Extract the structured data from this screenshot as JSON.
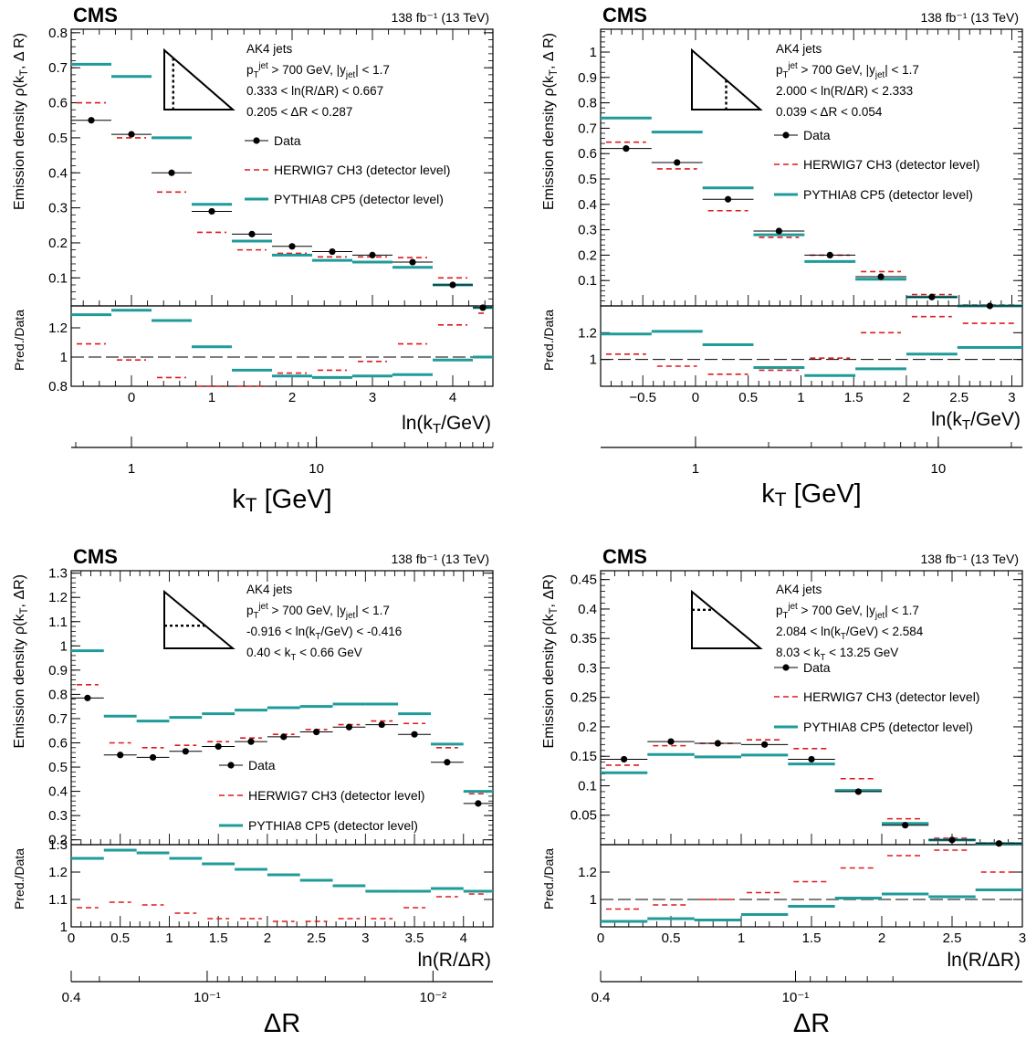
{
  "panels": [
    {
      "experiment": "CMS",
      "lumi": "138 fb⁻¹ (13 TeV)",
      "annotation": [
        "AK4 jets",
        "p_T^jet > 700 GeV, |y_jet| < 1.7",
        "0.333 < ln(R/ΔR) < 0.667",
        "0.205 < ΔR < 0.287"
      ],
      "legend": [
        "Data",
        "HERWIG7 CH3 (detector level)",
        "PYTHIA8 CP5 (detector level)"
      ],
      "ylabel": "Emission density ρ(k_T, Δ R)",
      "ratio_label": "Pred./Data",
      "xlabel": "ln(k_T/GeV)",
      "secondary_axis_label": "k_T [GeV]"
    },
    {
      "experiment": "CMS",
      "lumi": "138 fb⁻¹ (13 TeV)",
      "annotation": [
        "AK4 jets",
        "p_T^jet > 700 GeV, |y_jet| < 1.7",
        "2.000 < ln(R/ΔR) < 2.333",
        "0.039 < ΔR < 0.054"
      ],
      "legend": [
        "Data",
        "HERWIG7 CH3 (detector level)",
        "PYTHIA8 CP5 (detector level)"
      ],
      "ylabel": "Emission density ρ(k_T, Δ R)",
      "ratio_label": "Pred./Data",
      "xlabel": "ln(k_T/GeV)",
      "secondary_axis_label": "k_T [GeV]"
    },
    {
      "experiment": "CMS",
      "lumi": "138 fb⁻¹ (13 TeV)",
      "annotation": [
        "AK4 jets",
        "p_T^jet > 700 GeV, |y_jet| < 1.7",
        "-0.916 < ln(k_T/GeV) < -0.416",
        "0.40 < k_T < 0.66 GeV"
      ],
      "legend": [
        "Data",
        "HERWIG7 CH3 (detector level)",
        "PYTHIA8 CP5 (detector level)"
      ],
      "ylabel": "Emission density ρ(k_T, ΔR)",
      "ratio_label": "Pred./Data",
      "xlabel": "ln(R/ΔR)",
      "secondary_axis_label": "ΔR"
    },
    {
      "experiment": "CMS",
      "lumi": "138 fb⁻¹ (13 TeV)",
      "annotation": [
        "AK4 jets",
        "p_T^jet > 700 GeV, |y_jet| < 1.7",
        "2.084 < ln(k_T/GeV) < 2.584",
        "8.03 < k_T < 13.25 GeV"
      ],
      "legend": [
        "Data",
        "HERWIG7 CH3 (detector level)",
        "PYTHIA8 CP5 (detector level)"
      ],
      "ylabel": "Emission density ρ(k_T, ΔR)",
      "ratio_label": "Pred./Data",
      "xlabel": "ln(R/ΔR)",
      "secondary_axis_label": "ΔR"
    }
  ],
  "chart_data": [
    {
      "type": "line",
      "title": "",
      "xlabel": "ln(k_T/GeV)",
      "ylabel": "Emission density ρ(k_T, Δ R)",
      "xlim": [
        -0.75,
        4.5
      ],
      "ylim": [
        0.02,
        0.81
      ],
      "xticks": [
        0,
        1,
        2,
        3,
        4
      ],
      "yticks": [
        0.1,
        0.2,
        0.3,
        0.4,
        0.5,
        0.6,
        0.7,
        0.8
      ],
      "ratio_ylim": [
        0.8,
        1.35
      ],
      "ratio_yticks": [
        0.8,
        1,
        1.2
      ],
      "bin_edges": [
        -0.75,
        -0.25,
        0.25,
        0.75,
        1.25,
        1.75,
        2.25,
        2.75,
        3.25,
        3.75,
        4.25,
        4.5
      ],
      "series": [
        {
          "name": "Data",
          "values": [
            0.55,
            0.51,
            0.4,
            0.29,
            0.225,
            0.19,
            0.175,
            0.165,
            0.145,
            0.08,
            0.015
          ],
          "errors": [
            0.005,
            0.005,
            0.005,
            0.004,
            0.004,
            0.004,
            0.004,
            0.004,
            0.004,
            0.004,
            0.002
          ]
        },
        {
          "name": "HERWIG7 CH3 (detector level)",
          "values": [
            0.6,
            0.5,
            0.345,
            0.23,
            0.18,
            0.17,
            0.16,
            0.16,
            0.158,
            0.1,
            0.02
          ]
        },
        {
          "name": "PYTHIA8 CP5 (detector level)",
          "values": [
            0.71,
            0.675,
            0.5,
            0.31,
            0.205,
            0.165,
            0.15,
            0.145,
            0.13,
            0.08,
            0.015
          ]
        }
      ],
      "ratio_series": [
        {
          "name": "HERWIG7 CH3 (detector level)",
          "values": [
            1.09,
            0.98,
            0.86,
            0.8,
            0.8,
            0.89,
            0.91,
            0.97,
            1.09,
            1.22,
            1.3
          ]
        },
        {
          "name": "PYTHIA8 CP5 (detector level)",
          "values": [
            1.29,
            1.32,
            1.25,
            1.07,
            0.91,
            0.87,
            0.86,
            0.87,
            0.88,
            0.98,
            1.0
          ]
        }
      ],
      "secondary_axis": {
        "label": "k_T [GeV]",
        "labeled_ticks": [
          1,
          10
        ]
      }
    },
    {
      "type": "line",
      "title": "",
      "xlabel": "ln(k_T/GeV)",
      "ylabel": "Emission density ρ(k_T, Δ R)",
      "xlim": [
        -0.9,
        3.1
      ],
      "ylim": [
        0.0,
        1.09
      ],
      "xticks": [
        -0.5,
        0,
        0.5,
        1,
        1.5,
        2,
        2.5,
        3
      ],
      "yticks": [
        0.1,
        0.2,
        0.3,
        0.4,
        0.5,
        0.6,
        0.7,
        0.8,
        0.9,
        1
      ],
      "ratio_ylim": [
        0.8,
        1.4
      ],
      "ratio_yticks": [
        1,
        1.2
      ],
      "bin_edges": [
        -0.9,
        -0.4167,
        0.0667,
        0.55,
        1.0333,
        1.5167,
        2.0,
        2.4833,
        3.1
      ],
      "series": [
        {
          "name": "Data",
          "values": [
            0.62,
            0.565,
            0.42,
            0.295,
            0.2,
            0.115,
            0.035,
            0.0
          ],
          "errors": [
            0.006,
            0.006,
            0.006,
            0.005,
            0.004,
            0.004,
            0.003,
            0.002
          ]
        },
        {
          "name": "HERWIG7 CH3 (detector level)",
          "values": [
            0.645,
            0.54,
            0.375,
            0.27,
            0.2,
            0.135,
            0.045,
            0.004
          ]
        },
        {
          "name": "PYTHIA8 CP5 (detector level)",
          "values": [
            0.74,
            0.685,
            0.465,
            0.28,
            0.175,
            0.105,
            0.035,
            0.0
          ]
        }
      ],
      "ratio_series": [
        {
          "name": "HERWIG7 CH3 (detector level)",
          "values": [
            1.04,
            0.95,
            0.89,
            0.92,
            1.01,
            1.2,
            1.32,
            1.27
          ]
        },
        {
          "name": "PYTHIA8 CP5 (detector level)",
          "values": [
            1.19,
            1.21,
            1.11,
            0.94,
            0.88,
            0.93,
            1.04,
            1.09
          ]
        }
      ],
      "secondary_axis": {
        "label": "k_T [GeV]",
        "labeled_ticks": [
          1,
          10
        ]
      }
    },
    {
      "type": "line",
      "title": "",
      "xlabel": "ln(R/ΔR)",
      "ylabel": "Emission density ρ(k_T, ΔR)",
      "xlim": [
        0,
        4.3
      ],
      "ylim": [
        0.18,
        1.31
      ],
      "xticks": [
        0,
        0.5,
        1,
        1.5,
        2,
        2.5,
        3,
        3.5,
        4
      ],
      "yticks": [
        0.2,
        0.3,
        0.4,
        0.5,
        0.6,
        0.7,
        0.8,
        0.9,
        1,
        1.1,
        1.2,
        1.3
      ],
      "ratio_ylim": [
        1.0,
        1.3
      ],
      "ratio_yticks": [
        1,
        1.1,
        1.2,
        1.3
      ],
      "bin_edges": [
        0,
        0.333,
        0.667,
        1.0,
        1.333,
        1.667,
        2.0,
        2.333,
        2.667,
        3.0,
        3.333,
        3.667,
        4.0,
        4.3
      ],
      "series": [
        {
          "name": "Data",
          "values": [
            0.785,
            0.55,
            0.54,
            0.565,
            0.585,
            0.605,
            0.625,
            0.645,
            0.665,
            0.675,
            0.635,
            0.52,
            0.35
          ],
          "errors": [
            0.006,
            0.005,
            0.005,
            0.005,
            0.005,
            0.005,
            0.005,
            0.005,
            0.005,
            0.005,
            0.005,
            0.005,
            0.005
          ]
        },
        {
          "name": "HERWIG7 CH3 (detector level)",
          "values": [
            0.84,
            0.6,
            0.58,
            0.59,
            0.605,
            0.62,
            0.635,
            0.655,
            0.675,
            0.69,
            0.68,
            0.58,
            0.39
          ]
        },
        {
          "name": "PYTHIA8 CP5 (detector level)",
          "values": [
            0.98,
            0.71,
            0.69,
            0.705,
            0.72,
            0.735,
            0.745,
            0.75,
            0.76,
            0.76,
            0.72,
            0.595,
            0.4
          ]
        }
      ],
      "ratio_series": [
        {
          "name": "HERWIG7 CH3 (detector level)",
          "values": [
            1.07,
            1.09,
            1.08,
            1.05,
            1.03,
            1.03,
            1.02,
            1.02,
            1.03,
            1.03,
            1.07,
            1.11,
            1.12
          ]
        },
        {
          "name": "PYTHIA8 CP5 (detector level)",
          "values": [
            1.25,
            1.28,
            1.27,
            1.25,
            1.23,
            1.21,
            1.19,
            1.17,
            1.15,
            1.13,
            1.13,
            1.14,
            1.13
          ]
        }
      ],
      "secondary_axis": {
        "label": "ΔR",
        "labeled_ticks": [
          "0.4",
          "10⁻¹",
          "10⁻²"
        ]
      }
    },
    {
      "type": "line",
      "title": "",
      "xlabel": "ln(R/ΔR)",
      "ylabel": "Emission density ρ(k_T, ΔR)",
      "xlim": [
        0,
        3
      ],
      "ylim": [
        0.0,
        0.465
      ],
      "xticks": [
        0,
        0.5,
        1,
        1.5,
        2,
        2.5,
        3
      ],
      "yticks": [
        0.05,
        0.1,
        0.15,
        0.2,
        0.25,
        0.3,
        0.35,
        0.4,
        0.45
      ],
      "ratio_ylim": [
        0.8,
        1.4
      ],
      "ratio_yticks": [
        1,
        1.2
      ],
      "bin_edges": [
        0,
        0.333,
        0.667,
        1.0,
        1.333,
        1.667,
        2.0,
        2.333,
        2.667,
        3.0
      ],
      "series": [
        {
          "name": "Data",
          "values": [
            0.145,
            0.175,
            0.172,
            0.17,
            0.145,
            0.09,
            0.033,
            0.008,
            0.002
          ],
          "errors": [
            0.003,
            0.003,
            0.003,
            0.003,
            0.003,
            0.003,
            0.002,
            0.002,
            0.001
          ]
        },
        {
          "name": "HERWIG7 CH3 (detector level)",
          "values": [
            0.135,
            0.168,
            0.172,
            0.178,
            0.163,
            0.112,
            0.044,
            0.011,
            0.003
          ]
        },
        {
          "name": "PYTHIA8 CP5 (detector level)",
          "values": [
            0.122,
            0.153,
            0.149,
            0.152,
            0.137,
            0.092,
            0.036,
            0.008,
            0.002
          ]
        }
      ],
      "ratio_series": [
        {
          "name": "HERWIG7 CH3 (detector level)",
          "values": [
            0.93,
            0.96,
            1.0,
            1.05,
            1.13,
            1.23,
            1.32,
            1.36,
            1.2
          ]
        },
        {
          "name": "PYTHIA8 CP5 (detector level)",
          "values": [
            0.84,
            0.86,
            0.85,
            0.89,
            0.95,
            1.01,
            1.04,
            1.02,
            1.07
          ]
        }
      ],
      "secondary_axis": {
        "label": "ΔR",
        "labeled_ticks": [
          "0.4",
          "10⁻¹"
        ]
      }
    }
  ]
}
